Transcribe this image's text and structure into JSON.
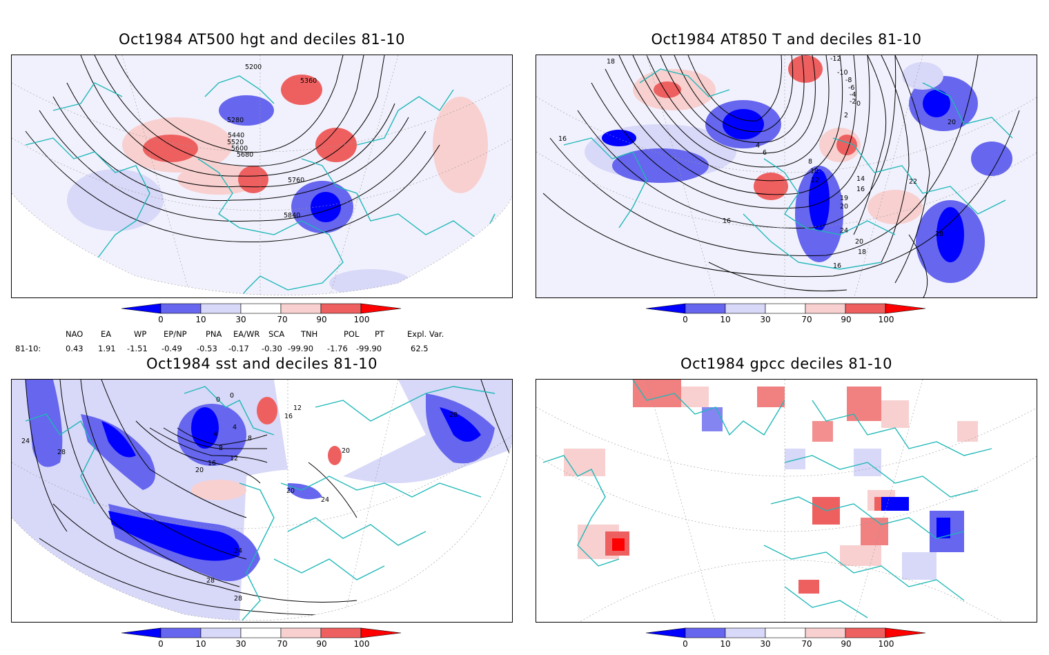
{
  "titles": {
    "tl": "Oct1984 AT500 hgt and deciles 81-10",
    "tr": "Oct1984 AT850 T and deciles 81-10",
    "bl": "Oct1984 sst and deciles 81-10",
    "br": "Oct1984 gpcc deciles 81-10"
  },
  "colorbar": {
    "labels": [
      "0",
      "10",
      "30",
      "70",
      "90",
      "100"
    ],
    "colors": [
      "#0000ff",
      "#6666ee",
      "#d8d8f8",
      "#ffffff",
      "#f8d0d0",
      "#ee6060",
      "#ff0000"
    ]
  },
  "indices": {
    "headers": [
      "NAO",
      "EA",
      "WP",
      "EP/NP",
      "PNA",
      "EA/WR",
      "SCA",
      "TNH",
      "POL",
      "PT",
      "Expl. Var."
    ],
    "row_label": "81-10:",
    "values": [
      "0.43",
      "1.91",
      "-1.51",
      "-0.49",
      "-0.53",
      "-0.17",
      "-0.30",
      "-99.90",
      "-1.76",
      "-99.90",
      "62.5"
    ]
  },
  "contours": {
    "tl": [
      "5200",
      "5360",
      "5280",
      "5440",
      "5520",
      "5600",
      "5680",
      "5760",
      "5840"
    ],
    "tr": [
      "18",
      "16",
      "-12",
      "-10",
      "-8",
      "-6",
      "-4",
      "-2",
      "0",
      "2",
      "4",
      "6",
      "8",
      "10",
      "12",
      "14",
      "16",
      "19",
      "20",
      "22",
      "24",
      "20",
      "18",
      "16",
      "16",
      "18",
      "20"
    ],
    "bl": [
      "0",
      "0",
      "4",
      "4",
      "8",
      "8",
      "12",
      "16",
      "20",
      "24",
      "24",
      "28",
      "28",
      "28",
      "28",
      "24",
      "20",
      "20",
      "16",
      "12"
    ]
  }
}
